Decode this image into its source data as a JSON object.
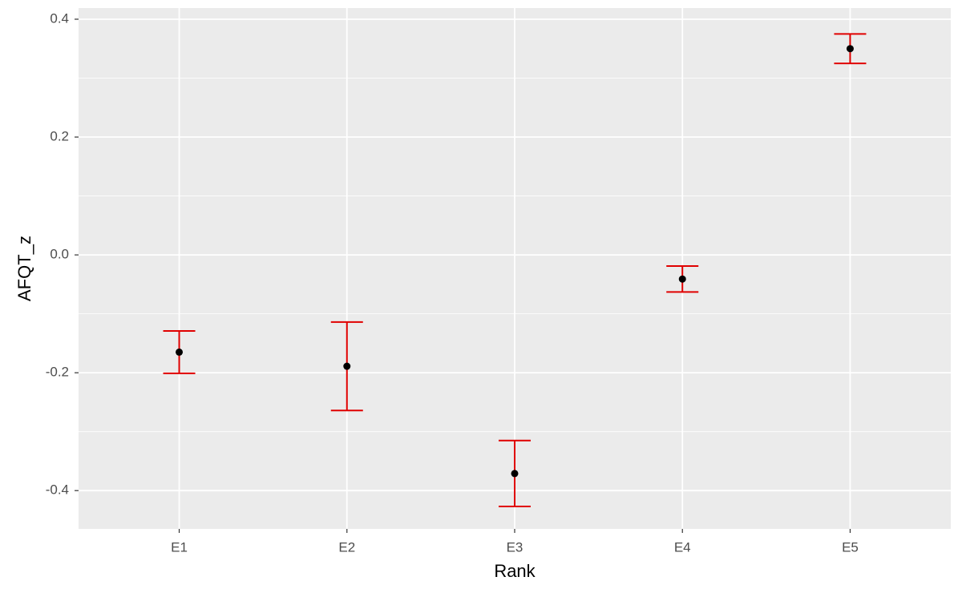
{
  "chart_data": {
    "type": "errorbar",
    "x_label": "Rank",
    "y_label": "AFQT_z",
    "categories": [
      "E1",
      "E2",
      "E3",
      "E4",
      "E5"
    ],
    "values": [
      -0.165,
      -0.189,
      -0.371,
      -0.041,
      0.35
    ],
    "errors": [
      0.036,
      0.075,
      0.056,
      0.022,
      0.025
    ],
    "color": "#000000",
    "error_color": "#e00000",
    "ylim": [
      -0.465,
      0.419
    ],
    "yticks": [
      -0.4,
      -0.2,
      {
        "value": 0,
        "label": "0.0"
      },
      0.2,
      0.4
    ],
    "grid": true
  }
}
